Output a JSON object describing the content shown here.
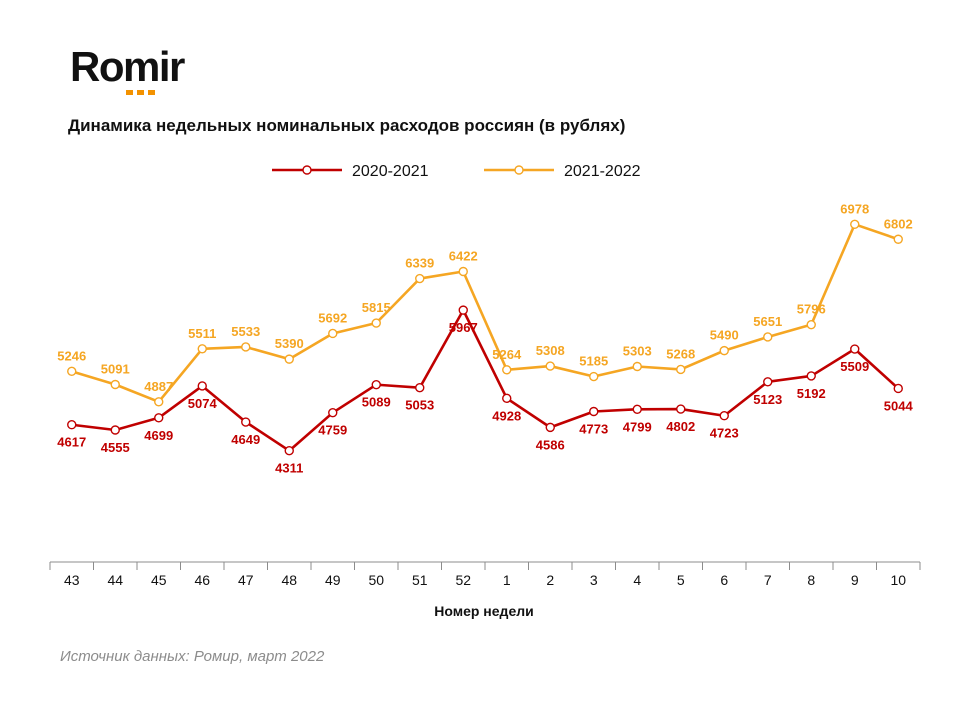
{
  "logo": {
    "text": "Romir",
    "dot_color": "#F39200"
  },
  "source": "Источник данных: Ромир, март 2022",
  "chart_data": {
    "type": "line",
    "title": "Динамика недельных номинальных расходов россиян (в рублях)",
    "xlabel": "Номер недели",
    "ylabel": "",
    "categories": [
      "43",
      "44",
      "45",
      "46",
      "47",
      "48",
      "49",
      "50",
      "51",
      "52",
      "1",
      "2",
      "3",
      "4",
      "5",
      "6",
      "7",
      "8",
      "9",
      "10"
    ],
    "ylim": [
      3000,
      7500
    ],
    "series": [
      {
        "name": "2020-2021",
        "color": "#C00000",
        "label_position": "below",
        "values": [
          4617,
          4555,
          4699,
          5074,
          4649,
          4311,
          4759,
          5089,
          5053,
          5967,
          4928,
          4586,
          4773,
          4799,
          4802,
          4723,
          5123,
          5192,
          5509,
          5044
        ]
      },
      {
        "name": "2021-2022",
        "color": "#F5A623",
        "label_position": "above",
        "values": [
          5246,
          5091,
          4887,
          5511,
          5533,
          5390,
          5692,
          5815,
          6339,
          6422,
          5264,
          5308,
          5185,
          5303,
          5268,
          5490,
          5651,
          5796,
          6978,
          6802
        ]
      }
    ]
  }
}
